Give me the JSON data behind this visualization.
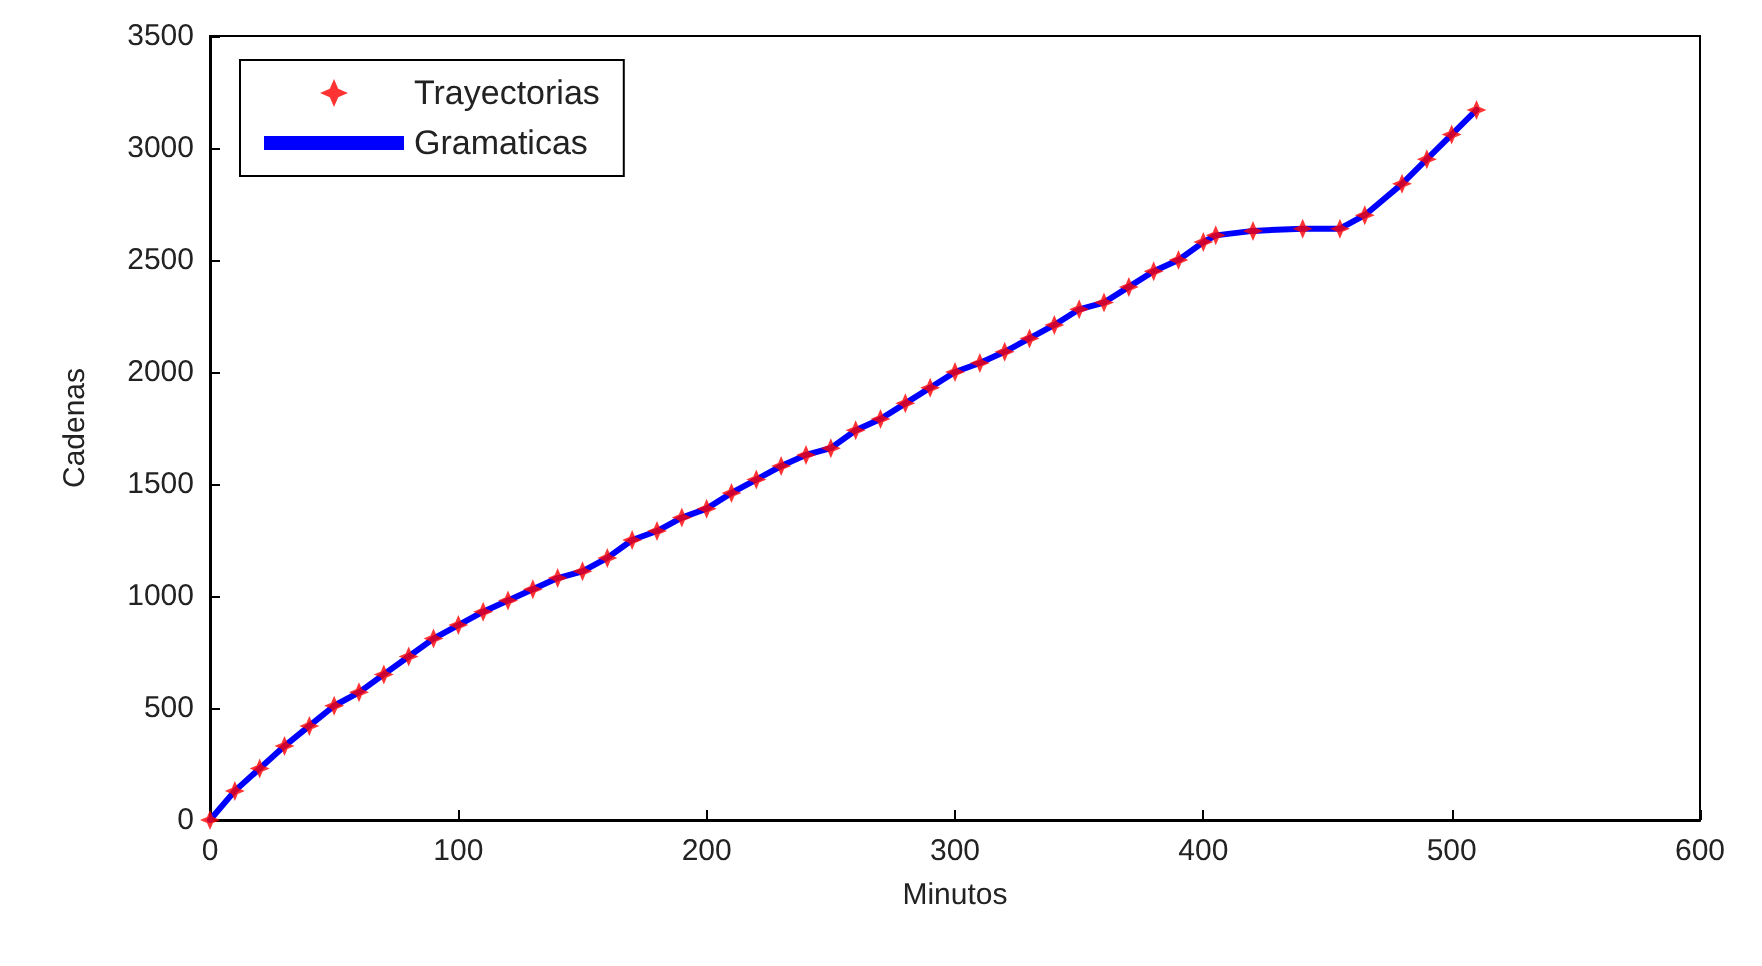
{
  "chart_data": {
    "type": "line",
    "xlabel": "Minutos",
    "ylabel": "Cadenas",
    "x": [
      0,
      10,
      20,
      30,
      40,
      50,
      60,
      70,
      80,
      90,
      100,
      110,
      120,
      130,
      140,
      150,
      160,
      170,
      180,
      190,
      200,
      210,
      220,
      230,
      240,
      250,
      260,
      270,
      280,
      290,
      300,
      310,
      320,
      330,
      340,
      350,
      360,
      370,
      380,
      390,
      400,
      405,
      420,
      440,
      455,
      465,
      480,
      490,
      500,
      510
    ],
    "series": [
      {
        "name": "Trayectorias",
        "type": "scatter",
        "marker": "star",
        "color": "#ff0000",
        "values": [
          0,
          130,
          230,
          330,
          420,
          510,
          570,
          650,
          730,
          810,
          870,
          930,
          980,
          1030,
          1080,
          1110,
          1170,
          1250,
          1290,
          1350,
          1390,
          1460,
          1520,
          1580,
          1630,
          1660,
          1740,
          1790,
          1860,
          1930,
          2000,
          2040,
          2090,
          2150,
          2210,
          2280,
          2310,
          2380,
          2450,
          2500,
          2580,
          2610,
          2630,
          2640,
          2640,
          2700,
          2840,
          2950,
          3060,
          3170
        ]
      },
      {
        "name": "Gramaticas",
        "type": "line",
        "color": "#0000ff",
        "values": [
          0,
          130,
          230,
          330,
          420,
          510,
          570,
          650,
          730,
          810,
          870,
          930,
          980,
          1030,
          1080,
          1110,
          1170,
          1250,
          1290,
          1350,
          1390,
          1460,
          1520,
          1580,
          1630,
          1660,
          1740,
          1790,
          1860,
          1930,
          2000,
          2040,
          2090,
          2150,
          2210,
          2280,
          2310,
          2380,
          2450,
          2500,
          2580,
          2610,
          2630,
          2640,
          2640,
          2700,
          2840,
          2950,
          3060,
          3170
        ]
      }
    ],
    "xlim": [
      0,
      600
    ],
    "xticks": [
      0,
      100,
      200,
      300,
      400,
      500,
      600
    ],
    "ylim": [
      0,
      3500
    ],
    "yticks": [
      0,
      500,
      1000,
      1500,
      2000,
      2500,
      3000,
      3500
    ],
    "grid": false,
    "legend": "top left",
    "line_style": "solid"
  }
}
